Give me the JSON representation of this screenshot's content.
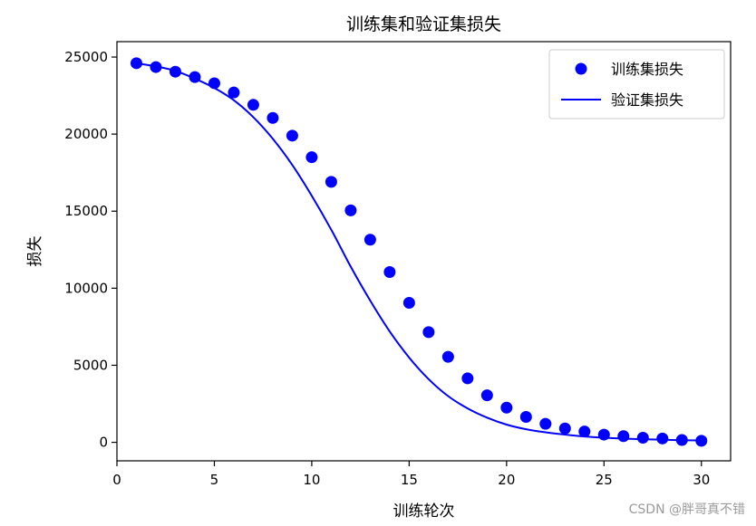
{
  "chart_data": {
    "type": "scatter+line",
    "title": "训练集和验证集损失",
    "xlabel": "训练轮次",
    "ylabel": "损失",
    "xlim": [
      0,
      31.5
    ],
    "ylim": [
      -1200,
      26000
    ],
    "xticks": [
      0,
      5,
      10,
      15,
      20,
      25,
      30
    ],
    "yticks": [
      0,
      5000,
      10000,
      15000,
      20000,
      25000
    ],
    "grid": false,
    "legend_position": "top-right",
    "series": [
      {
        "name": "训练集损失",
        "kind": "scatter",
        "color": "#0000ff",
        "x": [
          1,
          2,
          3,
          4,
          5,
          6,
          7,
          8,
          9,
          10,
          11,
          12,
          13,
          14,
          15,
          16,
          17,
          18,
          19,
          20,
          21,
          22,
          23,
          24,
          25,
          26,
          27,
          28,
          29,
          30
        ],
        "y": [
          24600,
          24350,
          24050,
          23700,
          23300,
          22700,
          21900,
          21050,
          19900,
          18500,
          16900,
          15050,
          13150,
          11050,
          9050,
          7150,
          5550,
          4150,
          3050,
          2250,
          1650,
          1200,
          900,
          700,
          500,
          400,
          300,
          250,
          150,
          100
        ]
      },
      {
        "name": "验证集损失",
        "kind": "line",
        "color": "#0000ff",
        "x": [
          1,
          2,
          3,
          4,
          5,
          6,
          7,
          8,
          9,
          10,
          11,
          12,
          13,
          14,
          15,
          16,
          17,
          18,
          19,
          20,
          21,
          22,
          23,
          24,
          25,
          26,
          27,
          28,
          29,
          30
        ],
        "y": [
          24600,
          24400,
          24100,
          23600,
          23000,
          22200,
          21100,
          19700,
          18000,
          16000,
          13800,
          11400,
          9200,
          7200,
          5500,
          4100,
          3000,
          2200,
          1600,
          1150,
          850,
          650,
          500,
          380,
          300,
          240,
          200,
          170,
          140,
          120
        ]
      }
    ]
  },
  "watermark": "CSDN @胖哥真不错"
}
